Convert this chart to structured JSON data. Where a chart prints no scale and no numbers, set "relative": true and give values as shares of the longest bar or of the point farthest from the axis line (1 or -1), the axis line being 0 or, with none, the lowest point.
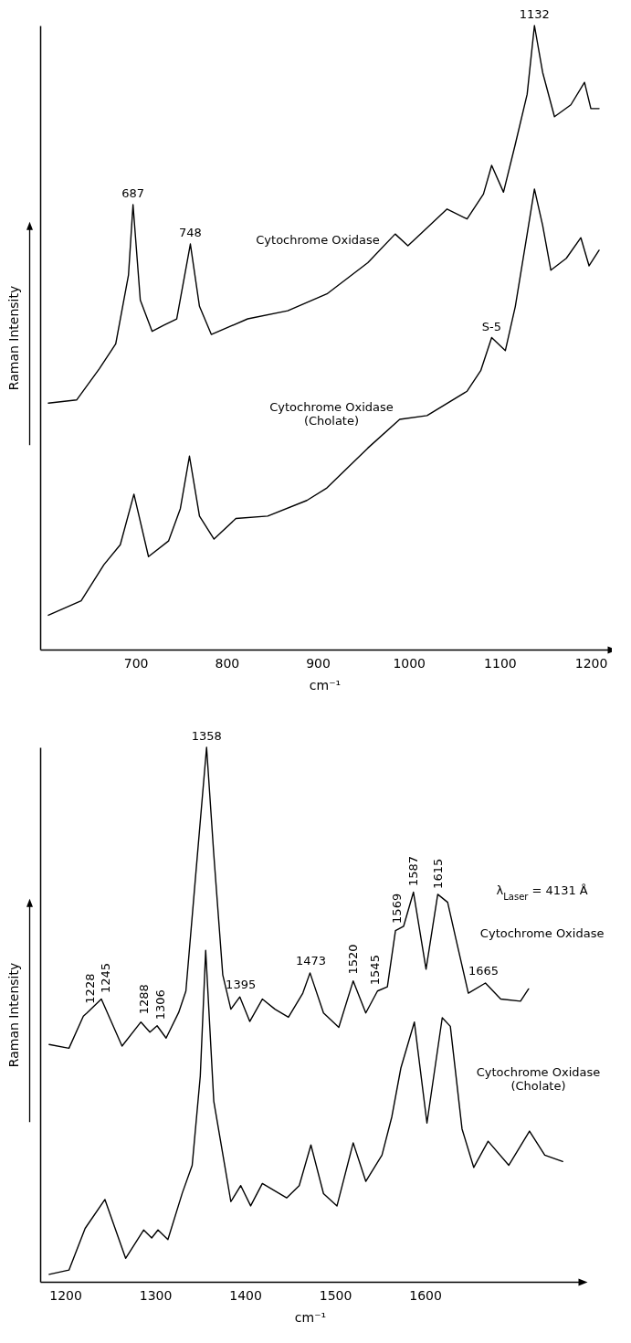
{
  "chart_data": [
    {
      "type": "line",
      "relative": true,
      "xlabel": "cm⁻¹",
      "ylabel": "Raman Intensity",
      "xlim": [
        595,
        1220
      ],
      "xticks": [
        700,
        800,
        900,
        1000,
        1100,
        1200
      ],
      "series": [
        {
          "name": "Cytochrome Oxidase",
          "color": "#000000",
          "x": [
            604,
            635,
            660,
            678,
            692,
            697,
            705,
            718,
            731,
            745,
            760,
            770,
            783,
            823,
            867,
            910,
            955,
            985,
            999,
            1042,
            1064,
            1082,
            1091,
            1104,
            1117,
            1130,
            1138,
            1147,
            1160,
            1178,
            1193,
            1200,
            1209
          ],
          "values": [
            0.395,
            0.4,
            0.45,
            0.49,
            0.6,
            0.713,
            0.56,
            0.51,
            0.52,
            0.53,
            0.65,
            0.55,
            0.505,
            0.53,
            0.543,
            0.57,
            0.62,
            0.666,
            0.647,
            0.706,
            0.69,
            0.73,
            0.776,
            0.733,
            0.81,
            0.89,
            1.0,
            0.925,
            0.854,
            0.873,
            0.909,
            0.867,
            0.867
          ]
        },
        {
          "name": "Cytochrome Oxidase (Cholate)",
          "color": "#000000",
          "x": [
            604,
            640,
            665,
            683,
            698,
            714,
            736,
            749,
            759,
            770,
            786,
            810,
            845,
            888,
            910,
            955,
            990,
            1020,
            1064,
            1079,
            1091,
            1106,
            1117,
            1130,
            1138,
            1147,
            1156,
            1173,
            1189,
            1198,
            1209
          ],
          "values": [
            0.055,
            0.078,
            0.136,
            0.168,
            0.249,
            0.149,
            0.174,
            0.226,
            0.31,
            0.214,
            0.177,
            0.21,
            0.214,
            0.239,
            0.259,
            0.323,
            0.369,
            0.375,
            0.414,
            0.447,
            0.5,
            0.479,
            0.55,
            0.666,
            0.738,
            0.68,
            0.608,
            0.627,
            0.66,
            0.615,
            0.64
          ]
        }
      ],
      "annotations": [
        {
          "text": "687",
          "x": 697,
          "y": 0.713
        },
        {
          "text": "748",
          "x": 760,
          "y": 0.65
        },
        {
          "text": "1132",
          "x": 1138,
          "y": 1.0
        },
        {
          "text": "S-5",
          "x": 1091,
          "y": 0.5
        }
      ]
    },
    {
      "type": "line",
      "relative": true,
      "xlabel": "cm⁻¹",
      "ylabel": "Raman Intensity",
      "xlim": [
        1172,
        1772
      ],
      "xticks": [
        1200,
        1300,
        1400,
        1500,
        1600
      ],
      "series": [
        {
          "name": "Cytochrome Oxidase",
          "color": "#000000",
          "x": [
            1182,
            1204,
            1220,
            1224,
            1240,
            1263,
            1284,
            1294,
            1302,
            1312,
            1326,
            1334,
            1345,
            1357,
            1365,
            1375,
            1384,
            1394,
            1405,
            1419,
            1433,
            1448,
            1464,
            1472,
            1487,
            1504,
            1520,
            1534,
            1547,
            1558,
            1567,
            1576,
            1587,
            1601,
            1614,
            1625,
            1634,
            1648,
            1667,
            1684,
            1706,
            1715
          ],
          "values": [
            0.444,
            0.437,
            0.497,
            0.503,
            0.529,
            0.441,
            0.486,
            0.467,
            0.479,
            0.456,
            0.504,
            0.544,
            0.763,
            1.0,
            0.8,
            0.574,
            0.51,
            0.533,
            0.487,
            0.529,
            0.51,
            0.495,
            0.54,
            0.578,
            0.503,
            0.476,
            0.563,
            0.503,
            0.544,
            0.552,
            0.657,
            0.665,
            0.729,
            0.585,
            0.725,
            0.71,
            0.643,
            0.54,
            0.559,
            0.529,
            0.525,
            0.548
          ]
        },
        {
          "name": "Cytochrome Oxidase (Cholate)",
          "color": "#000000",
          "x": [
            1182,
            1204,
            1222,
            1244,
            1267,
            1287,
            1296,
            1303,
            1314,
            1330,
            1341,
            1350,
            1356,
            1365,
            1384,
            1395,
            1406,
            1419,
            1446,
            1460,
            1473,
            1487,
            1502,
            1520,
            1534,
            1552,
            1563,
            1573,
            1588,
            1602,
            1619,
            1628,
            1641,
            1654,
            1670,
            1693,
            1716,
            1733,
            1753
          ],
          "values": [
            0.014,
            0.022,
            0.1,
            0.154,
            0.044,
            0.097,
            0.082,
            0.097,
            0.079,
            0.166,
            0.218,
            0.385,
            0.62,
            0.338,
            0.15,
            0.18,
            0.142,
            0.184,
            0.157,
            0.18,
            0.256,
            0.165,
            0.142,
            0.26,
            0.188,
            0.237,
            0.309,
            0.4,
            0.486,
            0.297,
            0.494,
            0.478,
            0.286,
            0.214,
            0.263,
            0.218,
            0.282,
            0.237,
            0.225
          ]
        }
      ],
      "annotations": [
        {
          "text": "1228",
          "x": 1228,
          "y": 0.51
        },
        {
          "text": "1245",
          "x": 1245,
          "y": 0.53
        },
        {
          "text": "1288",
          "x": 1288,
          "y": 0.49
        },
        {
          "text": "1306",
          "x": 1306,
          "y": 0.48
        },
        {
          "text": "1358",
          "x": 1357,
          "y": 1.0
        },
        {
          "text": "1395",
          "x": 1395,
          "y": 0.535
        },
        {
          "text": "1473",
          "x": 1473,
          "y": 0.58
        },
        {
          "text": "1520",
          "x": 1520,
          "y": 0.565
        },
        {
          "text": "1545",
          "x": 1545,
          "y": 0.545
        },
        {
          "text": "1569",
          "x": 1569,
          "y": 0.66
        },
        {
          "text": "1587",
          "x": 1587,
          "y": 0.73
        },
        {
          "text": "1615",
          "x": 1615,
          "y": 0.725
        },
        {
          "text": "1665",
          "x": 1665,
          "y": 0.56
        },
        "λ$_{Laser}$ = 4131 Å"
      ]
    }
  ]
}
